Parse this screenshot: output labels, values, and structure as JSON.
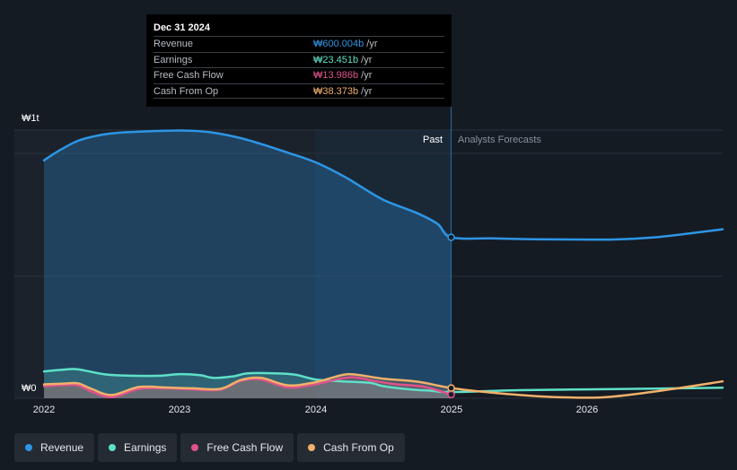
{
  "tooltip": {
    "date": "Dec 31 2024",
    "rows": [
      {
        "label": "Revenue",
        "value": "₩600.004b",
        "unit": "/yr",
        "color": "#2d96e5"
      },
      {
        "label": "Earnings",
        "value": "₩23.451b",
        "unit": "/yr",
        "color": "#5fe0c8"
      },
      {
        "label": "Free Cash Flow",
        "value": "₩13.986b",
        "unit": "/yr",
        "color": "#e0528b"
      },
      {
        "label": "Cash From Op",
        "value": "₩38.373b",
        "unit": "/yr",
        "color": "#f0b16a"
      }
    ]
  },
  "regions": {
    "past": "Past",
    "forecast": "Analysts Forecasts"
  },
  "legend": [
    {
      "label": "Revenue",
      "color": "#2d96e5"
    },
    {
      "label": "Earnings",
      "color": "#5fe0c8"
    },
    {
      "label": "Free Cash Flow",
      "color": "#e0528b"
    },
    {
      "label": "Cash From Op",
      "color": "#f0b16a"
    }
  ],
  "chart_data": {
    "type": "area",
    "title": "",
    "ylabel": "",
    "xlabel": "",
    "y_tick_labels": [
      "₩0",
      "₩1t"
    ],
    "ylim": [
      0,
      1000
    ],
    "xlim": [
      2022.0,
      2027.0
    ],
    "x_ticks": [
      2022,
      2023,
      2024,
      2025,
      2026
    ],
    "x_tick_labels": [
      "2022",
      "2023",
      "2024",
      "2025",
      "2026"
    ],
    "past_forecast_boundary": 2025.0,
    "highlight_date": 2025.0,
    "units": "KRW billions",
    "series": [
      {
        "name": "Revenue",
        "color": "#2d96e5",
        "filled": true,
        "points": [
          [
            2022.0,
            887
          ],
          [
            2022.1,
            920
          ],
          [
            2022.25,
            960
          ],
          [
            2022.4,
            980
          ],
          [
            2022.55,
            990
          ],
          [
            2022.75,
            995
          ],
          [
            2022.95,
            998
          ],
          [
            2023.1,
            997
          ],
          [
            2023.25,
            990
          ],
          [
            2023.45,
            970
          ],
          [
            2023.65,
            940
          ],
          [
            2023.8,
            915
          ],
          [
            2024.0,
            880
          ],
          [
            2024.2,
            830
          ],
          [
            2024.3,
            800
          ],
          [
            2024.5,
            740
          ],
          [
            2024.75,
            690
          ],
          [
            2024.9,
            650
          ],
          [
            2025.0,
            600
          ],
          [
            2025.3,
            596
          ],
          [
            2025.6,
            593
          ],
          [
            2025.9,
            592
          ],
          [
            2026.2,
            592
          ],
          [
            2026.5,
            600
          ],
          [
            2026.75,
            614
          ],
          [
            2027.0,
            630
          ]
        ]
      },
      {
        "name": "Earnings",
        "color": "#5fe0c8",
        "filled": true,
        "points": [
          [
            2022.0,
            100
          ],
          [
            2022.15,
            107
          ],
          [
            2022.25,
            108
          ],
          [
            2022.45,
            89
          ],
          [
            2022.65,
            84
          ],
          [
            2022.85,
            84
          ],
          [
            2023.0,
            90
          ],
          [
            2023.15,
            86
          ],
          [
            2023.25,
            76
          ],
          [
            2023.4,
            82
          ],
          [
            2023.5,
            93
          ],
          [
            2023.7,
            93
          ],
          [
            2023.85,
            88
          ],
          [
            2024.0,
            70
          ],
          [
            2024.2,
            63
          ],
          [
            2024.4,
            58
          ],
          [
            2024.5,
            45
          ],
          [
            2024.7,
            33
          ],
          [
            2024.85,
            28
          ],
          [
            2025.0,
            23
          ],
          [
            2025.5,
            30
          ],
          [
            2026.0,
            33
          ],
          [
            2026.5,
            36
          ],
          [
            2027.0,
            39
          ]
        ]
      },
      {
        "name": "Free Cash Flow",
        "color": "#e0528b",
        "filled": true,
        "points": [
          [
            2022.0,
            45
          ],
          [
            2022.15,
            49
          ],
          [
            2022.25,
            48
          ],
          [
            2022.35,
            25
          ],
          [
            2022.5,
            4
          ],
          [
            2022.7,
            35
          ],
          [
            2022.9,
            37
          ],
          [
            2023.1,
            33
          ],
          [
            2023.3,
            32
          ],
          [
            2023.45,
            65
          ],
          [
            2023.6,
            70
          ],
          [
            2023.8,
            40
          ],
          [
            2024.0,
            52
          ],
          [
            2024.25,
            78
          ],
          [
            2024.45,
            63
          ],
          [
            2024.6,
            52
          ],
          [
            2024.8,
            43
          ],
          [
            2025.0,
            14
          ]
        ]
      },
      {
        "name": "Cash From Op",
        "color": "#f0b16a",
        "filled": true,
        "points": [
          [
            2022.0,
            52
          ],
          [
            2022.15,
            55
          ],
          [
            2022.25,
            56
          ],
          [
            2022.35,
            35
          ],
          [
            2022.5,
            12
          ],
          [
            2022.7,
            42
          ],
          [
            2022.9,
            40
          ],
          [
            2023.1,
            37
          ],
          [
            2023.3,
            35
          ],
          [
            2023.45,
            68
          ],
          [
            2023.6,
            76
          ],
          [
            2023.8,
            48
          ],
          [
            2024.0,
            60
          ],
          [
            2024.2,
            87
          ],
          [
            2024.3,
            88
          ],
          [
            2024.5,
            73
          ],
          [
            2024.75,
            62
          ],
          [
            2025.0,
            38
          ],
          [
            2025.3,
            21
          ],
          [
            2025.7,
            6
          ],
          [
            2026.1,
            3
          ],
          [
            2026.5,
            25
          ],
          [
            2027.0,
            63
          ]
        ]
      }
    ]
  }
}
